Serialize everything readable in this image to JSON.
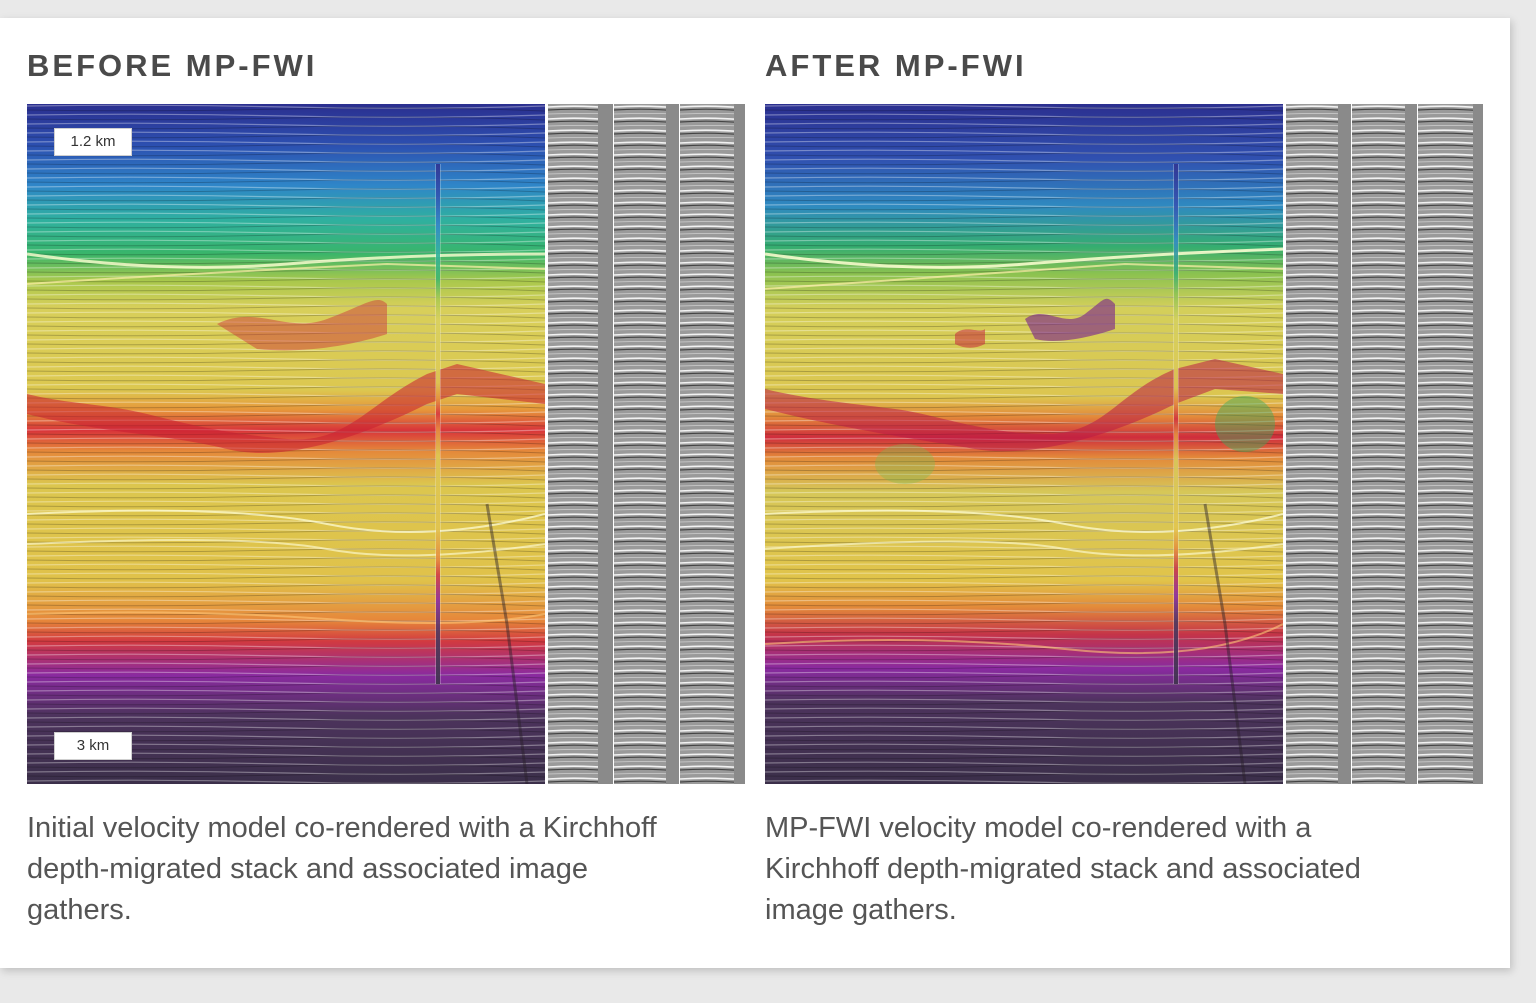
{
  "panels": [
    {
      "id": "before",
      "heading": "BEFORE MP-FWI",
      "depth_top": "1.2 km",
      "depth_bottom": "3 km",
      "caption": "Initial velocity model co-rendered with a Kirchhoff depth-migrated stack and associated image gathers.",
      "gather_count": 3
    },
    {
      "id": "after",
      "heading": "AFTER MP-FWI",
      "depth_top": "",
      "depth_bottom": "",
      "caption": "MP-FWI velocity model co-rendered with a Kirchhoff depth-migrated stack and associated image gathers.",
      "gather_count": 3
    }
  ],
  "colors": {
    "heading": "#4a4a4a",
    "caption": "#555555",
    "velocity_scale": [
      "#2b2f8f",
      "#2f86c8",
      "#2fb07c",
      "#b6c94a",
      "#e8d86a",
      "#e9a63e",
      "#d8343a",
      "#8a2aa0",
      "#3b2f4a"
    ]
  }
}
